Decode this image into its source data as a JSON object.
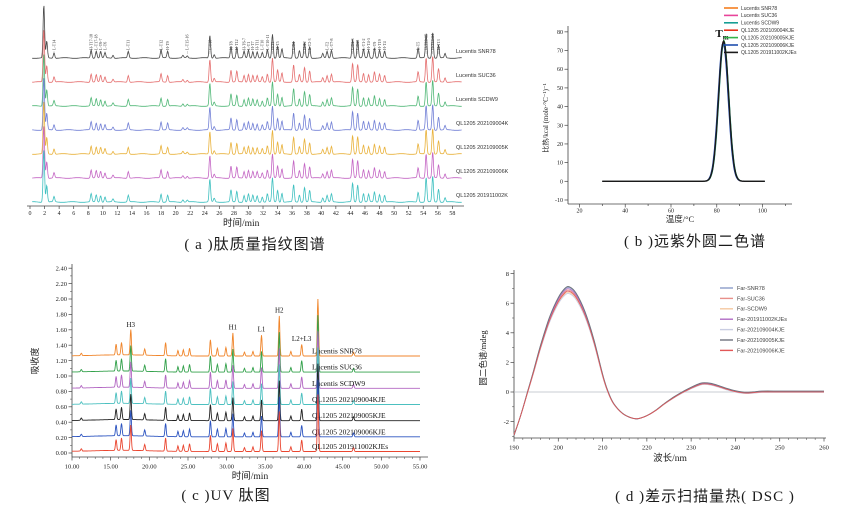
{
  "captions": {
    "a": "( a )肽质量指纹图谱",
    "b": "( b )远紫外圆二色谱",
    "c": "( c )UV 肽图",
    "d": "( d )差示扫描量热( DSC )"
  },
  "chart_data": [
    {
      "id": "a",
      "type": "line",
      "kind": "stacked-chromatogram",
      "xlabel": "时间/min",
      "xlim": [
        0,
        59.6
      ],
      "xticks": [
        0,
        2,
        4,
        6,
        8,
        10,
        12,
        14,
        16,
        18,
        20,
        22,
        24,
        26,
        28,
        30,
        32,
        34,
        36,
        38,
        40,
        42,
        44,
        46,
        48,
        50,
        52,
        54,
        56,
        58
      ],
      "traces": [
        {
          "name": "Lucentis SNR78",
          "color": "#4a4a4a"
        },
        {
          "name": "Lucentis SUC36",
          "color": "#e57070"
        },
        {
          "name": "Lucentis SCDW9",
          "color": "#52b878"
        },
        {
          "name": "QL1205 202109004KJE",
          "color": "#7381d6"
        },
        {
          "name": "QL1205 202109005KJE",
          "color": "#e9b23c"
        },
        {
          "name": "QL1205 202109006KJE",
          "color": "#c466c4"
        },
        {
          "name": "QL1205 201911002KJEs",
          "color": "#3fc0c0"
        }
      ],
      "peaks": [
        {
          "t": 1.9,
          "h": 2.2
        },
        {
          "t": 2.3,
          "h": 0.7
        },
        {
          "t": 3.3,
          "h": 0.22,
          "label": "L-T14"
        },
        {
          "t": 8.4,
          "h": 0.34,
          "label": "H-T17-18"
        },
        {
          "t": 9.1,
          "h": 0.3,
          "label": "L-T17-18"
        },
        {
          "t": 9.7,
          "h": 0.27,
          "label": "L-T6-7"
        },
        {
          "t": 10.3,
          "h": 0.22,
          "label": "L-T6"
        },
        {
          "t": 11.4,
          "h": 0.12
        },
        {
          "t": 13.5,
          "h": 0.28,
          "label": "L-T11"
        },
        {
          "t": 18.0,
          "h": 0.34,
          "label": "L-T12"
        },
        {
          "t": 18.9,
          "h": 0.28,
          "label": "H-T9"
        },
        {
          "t": 21.0,
          "h": 0.1
        },
        {
          "t": 21.6,
          "h": 0.08,
          "label": "L-T15-16"
        },
        {
          "t": 24.7,
          "h": 0.95,
          "label": "L-T16"
        },
        {
          "t": 25.3,
          "h": 0.15
        },
        {
          "t": 27.6,
          "h": 0.5,
          "label": "H-T8"
        },
        {
          "t": 28.4,
          "h": 0.45,
          "label": "H-T12"
        },
        {
          "t": 29.4,
          "h": 0.28,
          "label": "H-T6-7"
        },
        {
          "t": 30.0,
          "h": 0.33,
          "label": "L-T1"
        },
        {
          "t": 30.6,
          "h": 0.28,
          "label": "H-T7"
        },
        {
          "t": 31.2,
          "h": 0.26,
          "label": "H-T11"
        },
        {
          "t": 31.9,
          "h": 0.22,
          "label": "L-T10"
        },
        {
          "t": 32.6,
          "h": 0.34,
          "label": "L-T10-11"
        },
        {
          "t": 33.3,
          "h": 1.0,
          "label": "H-T1"
        },
        {
          "t": 34.0,
          "h": 0.5,
          "label": "H-T5"
        },
        {
          "t": 34.6,
          "h": 0.38
        },
        {
          "t": 36.2,
          "h": 0.72,
          "label": "L-T4"
        },
        {
          "t": 37.0,
          "h": 0.3
        },
        {
          "t": 37.7,
          "h": 0.62,
          "label": "H-T2"
        },
        {
          "t": 38.4,
          "h": 0.48,
          "label": "L-T2-3"
        },
        {
          "t": 40.2,
          "h": 0.18
        },
        {
          "t": 40.8,
          "h": 0.28,
          "label": "L-T2"
        },
        {
          "t": 41.4,
          "h": 0.33,
          "label": "L-T7-8"
        },
        {
          "t": 44.3,
          "h": 0.78,
          "label": "L-T1-3"
        },
        {
          "t": 45.0,
          "h": 0.72,
          "label": "L-T18"
        },
        {
          "t": 45.8,
          "h": 0.36,
          "label": "L-T1-2"
        },
        {
          "t": 46.5,
          "h": 0.32,
          "label": "H-T4-5"
        },
        {
          "t": 47.3,
          "h": 0.42,
          "label": "L-T9"
        },
        {
          "t": 48.0,
          "h": 0.32,
          "label": "H-T19"
        },
        {
          "t": 48.7,
          "h": 0.28,
          "label": "H-T4"
        },
        {
          "t": 53.3,
          "h": 0.42,
          "label": "L-T5"
        },
        {
          "t": 54.4,
          "h": 1.02,
          "label": "H-T13-15"
        },
        {
          "t": 55.3,
          "h": 1.08,
          "label": "H-T13-14"
        },
        {
          "t": 56.1,
          "h": 0.55,
          "label": "H-T13"
        },
        {
          "t": 57.0,
          "h": 0.18
        }
      ]
    },
    {
      "id": "b",
      "type": "line",
      "kind": "thermal-transition-peak",
      "xlabel": "温度/°C",
      "ylabel": "比热/kcal (mole·°C⁻¹)⁻¹",
      "xlim": [
        15,
        112
      ],
      "ylim": [
        -10,
        80
      ],
      "xticks": [
        20,
        40,
        60,
        80,
        100
      ],
      "yticks": [
        -10,
        0,
        10,
        20,
        30,
        40,
        50,
        60,
        70,
        80
      ],
      "annotation": {
        "main": "T",
        "sub": "m"
      },
      "curve_span": [
        30,
        101
      ],
      "series": [
        {
          "name": "Lucentis SNR78",
          "color": "#f57e20",
          "tm": 83.0,
          "height": 73.5
        },
        {
          "name": "Lucentis SUC36",
          "color": "#e8449a",
          "tm": 82.8,
          "height": 74.0
        },
        {
          "name": "Lucentis SCDW9",
          "color": "#169e94",
          "tm": 83.2,
          "height": 74.5
        },
        {
          "name": "QL1205 202109004KJE",
          "color": "#e8301a",
          "tm": 82.9,
          "height": 75.0
        },
        {
          "name": "QL1205 202109005KJE",
          "color": "#35b44a",
          "tm": 83.1,
          "height": 75.5
        },
        {
          "name": "QL1205 202109006KJE",
          "color": "#1f4fae",
          "tm": 82.7,
          "height": 74.2
        },
        {
          "name": "QL1205 201911002KJEs",
          "color": "#1a1a1a",
          "tm": 83.0,
          "height": 75.0
        }
      ]
    },
    {
      "id": "c",
      "type": "line",
      "kind": "stacked-chromatogram",
      "xlabel": "时间/min",
      "ylabel": "吸收度",
      "xlim": [
        9.5,
        55.5
      ],
      "ylim": [
        -0.05,
        2.45
      ],
      "xticks": [
        10,
        15,
        20,
        25,
        30,
        35,
        40,
        45,
        50,
        55
      ],
      "xtick_labels": [
        "10.00",
        "15.00",
        "20.00",
        "25.00",
        "30.00",
        "35.00",
        "40.00",
        "45.00",
        "50.00",
        "55.00"
      ],
      "yticks": [
        0.0,
        0.2,
        0.4,
        0.6,
        0.8,
        1.0,
        1.2,
        1.4,
        1.6,
        1.8,
        2.0,
        2.2,
        2.4
      ],
      "ytick_labels": [
        "0.00",
        "0.20",
        "0.40",
        "0.60",
        "0.80",
        "1.00",
        "1.20",
        "1.40",
        "1.60",
        "1.80",
        "2.00",
        "2.20",
        "2.40"
      ],
      "traces": [
        {
          "name": "Lucentis SNR78",
          "color": "#f0862c",
          "baseline": 1.26
        },
        {
          "name": "Lucentis SUC36",
          "color": "#33a14b",
          "baseline": 1.05
        },
        {
          "name": "Lucentis SCDW9",
          "color": "#b266c2",
          "baseline": 0.84
        },
        {
          "name": "QL1205 202109004KJE",
          "color": "#4cc0c0",
          "baseline": 0.63
        },
        {
          "name": "QL1205 202109005KJE",
          "color": "#222222",
          "baseline": 0.42
        },
        {
          "name": "QL1205 202109006KJE",
          "color": "#2b53c0",
          "baseline": 0.21
        },
        {
          "name": "QL1205 201911002KJEs",
          "color": "#ea4630",
          "baseline": 0.02
        }
      ],
      "peaks": [
        {
          "t": 11.2,
          "h": 0.03
        },
        {
          "t": 15.7,
          "h": 0.14
        },
        {
          "t": 16.4,
          "h": 0.16
        },
        {
          "t": 17.6,
          "h": 0.33,
          "label": "H3"
        },
        {
          "t": 19.4,
          "h": 0.08
        },
        {
          "t": 22.1,
          "h": 0.17
        },
        {
          "t": 23.7,
          "h": 0.07
        },
        {
          "t": 24.4,
          "h": 0.08
        },
        {
          "t": 25.2,
          "h": 0.1
        },
        {
          "t": 27.9,
          "h": 0.21
        },
        {
          "t": 28.8,
          "h": 0.1
        },
        {
          "t": 29.9,
          "h": 0.11
        },
        {
          "t": 30.8,
          "h": 0.3,
          "label": "H1"
        },
        {
          "t": 32.3,
          "h": 0.05
        },
        {
          "t": 33.4,
          "h": 0.06
        },
        {
          "t": 34.5,
          "h": 0.27,
          "label": "L1"
        },
        {
          "t": 36.8,
          "h": 0.52,
          "label": "H2"
        },
        {
          "t": 38.3,
          "h": 0.06
        },
        {
          "t": 39.7,
          "h": 0.15,
          "label": "L2+L3"
        },
        {
          "t": 41.8,
          "h": 0.74
        },
        {
          "t": 46.4,
          "h": 0.05
        }
      ]
    },
    {
      "id": "d",
      "type": "line",
      "kind": "cd-spectrum",
      "xlabel": "波长/nm",
      "ylabel": "圆二色谱/mdeg",
      "xlim": [
        188,
        261
      ],
      "ylim": [
        -3.4,
        8.6
      ],
      "xticks": [
        190,
        200,
        210,
        220,
        230,
        240,
        250,
        260
      ],
      "yticks": [
        -2,
        0,
        2,
        4,
        6,
        8
      ],
      "zero_line": true,
      "curve": {
        "x": [
          190,
          191.5,
          193,
          194.5,
          196,
          198,
          200,
          201.5,
          202.5,
          204,
          206,
          208,
          210,
          211.2,
          212.5,
          214.5,
          216.5,
          218,
          220,
          222,
          224,
          226,
          228,
          230,
          232,
          233,
          234.5,
          236,
          238,
          240,
          242,
          244,
          246,
          250,
          254,
          258,
          260
        ],
        "y": [
          -2.9,
          -1.6,
          -0.1,
          1.4,
          3.0,
          4.8,
          6.1,
          6.7,
          6.8,
          6.4,
          5.2,
          3.4,
          1.1,
          0.0,
          -0.8,
          -1.45,
          -1.75,
          -1.8,
          -1.6,
          -1.25,
          -0.8,
          -0.4,
          -0.05,
          0.25,
          0.5,
          0.55,
          0.5,
          0.38,
          0.18,
          0.02,
          -0.07,
          -0.05,
          0.0,
          0.0,
          0.0,
          0.0,
          0.0
        ]
      },
      "legend": [
        {
          "name": "Far-SNR78",
          "color": "#8b9dc9"
        },
        {
          "name": "Far-SUC36",
          "color": "#e8908a"
        },
        {
          "name": "Far-SCDW9",
          "color": "#f6c9a2"
        },
        {
          "name": "Far-201911002KJEs",
          "color": "#b06cc4"
        },
        {
          "name": "Far-202109004KJE",
          "color": "#c9cde2"
        },
        {
          "name": "Far-202109005KJE",
          "color": "#70737e"
        },
        {
          "name": "Far-202109006KJE",
          "color": "#e25757"
        }
      ]
    }
  ]
}
